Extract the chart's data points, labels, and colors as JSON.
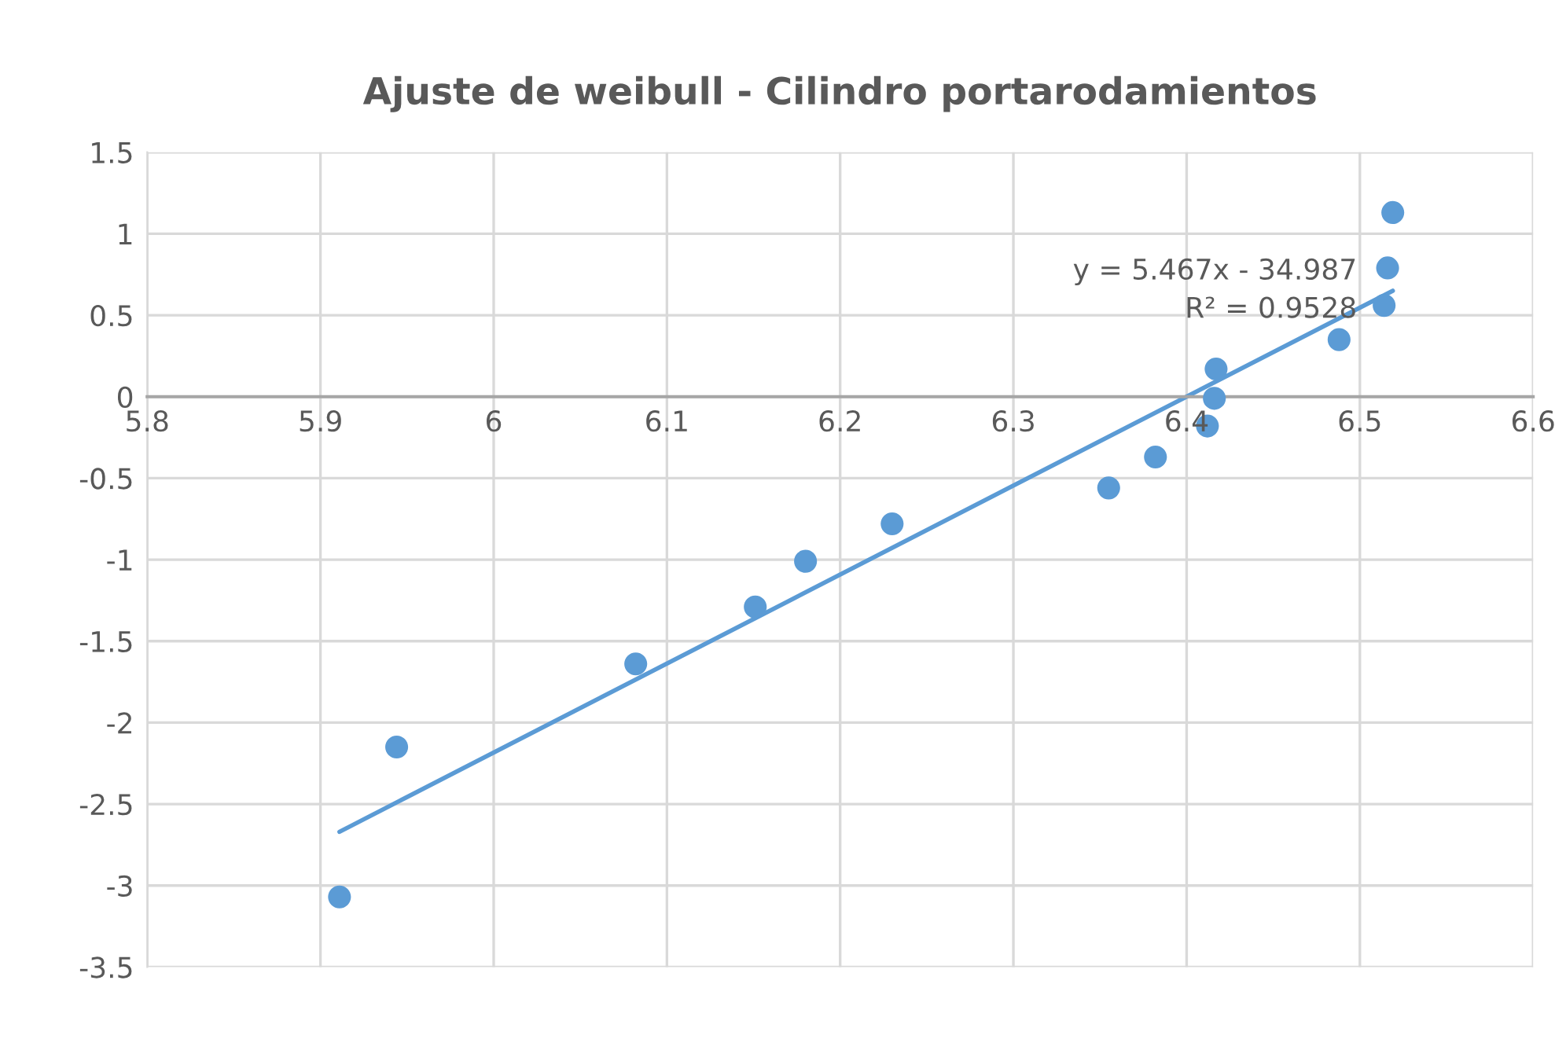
{
  "chart_data": {
    "type": "scatter",
    "title": "Ajuste de weibull - Cilindro portarodamientos",
    "series": [
      {
        "color": "#5b9bd5",
        "marker": "circle",
        "x": [
          5.911,
          5.944,
          6.082,
          6.151,
          6.18,
          6.23,
          6.355,
          6.382,
          6.412,
          6.416,
          6.417,
          6.488,
          6.514,
          6.516,
          6.519
        ],
        "values": [
          -3.07,
          -2.15,
          -1.64,
          -1.29,
          -1.01,
          -0.78,
          -0.56,
          -0.37,
          -0.18,
          -0.01,
          0.17,
          0.35,
          0.56,
          0.79,
          1.13
        ]
      },
      {
        "type": "line",
        "color": "#5b9bd5",
        "line_style": "solid",
        "x": [
          5.911,
          6.519
        ],
        "values": [
          -2.67,
          0.65
        ]
      }
    ],
    "annotations": [
      "y = 5.467x - 34.987\nR² = 0.9528"
    ],
    "xlim": [
      5.8,
      6.6
    ],
    "xticks": [
      5.8,
      5.9,
      6,
      6.1,
      6.2,
      6.3,
      6.4,
      6.5,
      6.6
    ],
    "ylim": [
      -3.5,
      1.5
    ],
    "yticks": [
      -3.5,
      -3,
      -2.5,
      -2,
      -1.5,
      -1,
      -0.5,
      0,
      0.5,
      1,
      1.5
    ],
    "grid": true,
    "legend": false
  }
}
